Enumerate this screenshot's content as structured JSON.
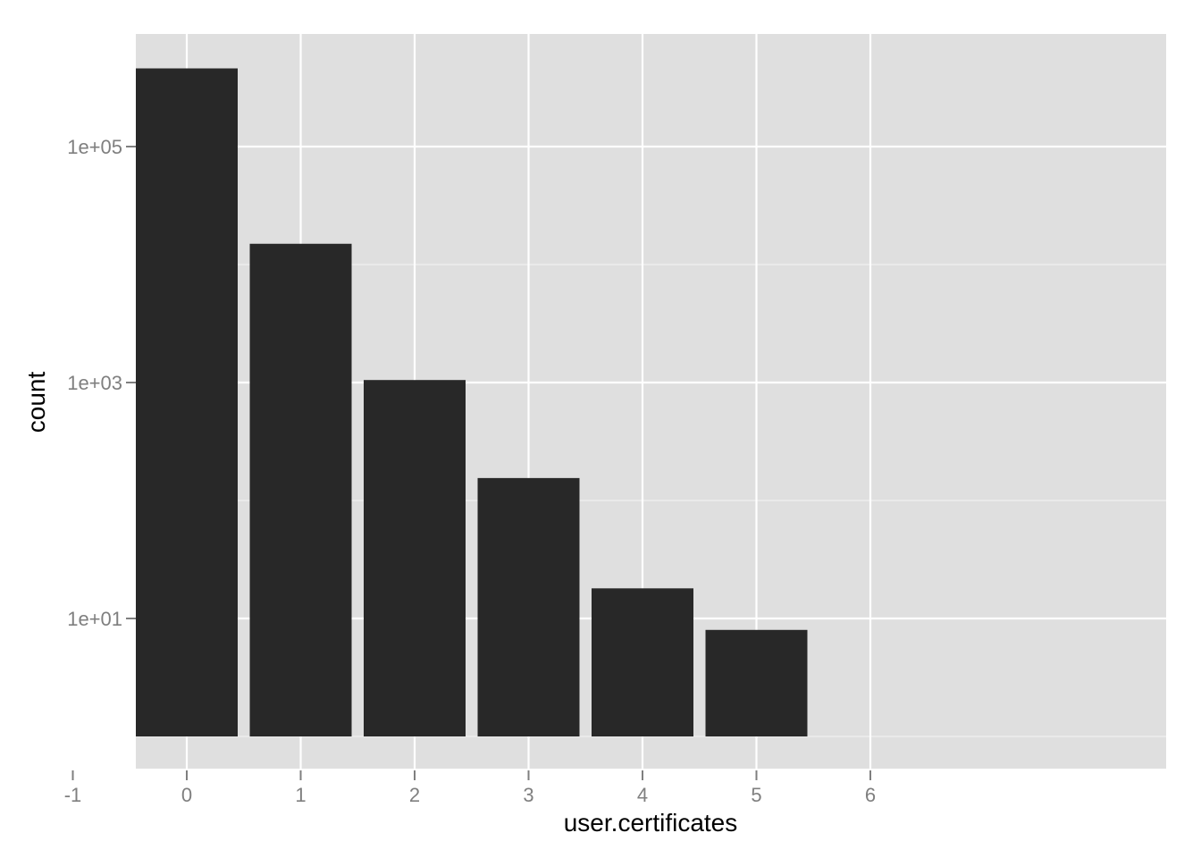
{
  "chart_data": {
    "type": "bar",
    "x_field": "user.certificates",
    "categories": [
      0,
      1,
      2,
      3,
      4,
      5
    ],
    "values": [
      460000,
      15000,
      1050,
      155,
      18,
      8
    ],
    "xlabel": "user.certificates",
    "ylabel": "count",
    "y_scale": "log10",
    "x_ticks": [
      "-1",
      "0",
      "1",
      "2",
      "3",
      "4",
      "5",
      "6"
    ],
    "y_ticks": [
      {
        "value": 10,
        "label": "1e+01"
      },
      {
        "value": 1000,
        "label": "1e+03"
      },
      {
        "value": 100000,
        "label": "1e+05"
      }
    ],
    "bar_baseline": 1,
    "bar_color": "#282828",
    "panel_color": "#dfdfdf",
    "grid_color": "#ffffff",
    "grid": true,
    "legend": "none"
  }
}
